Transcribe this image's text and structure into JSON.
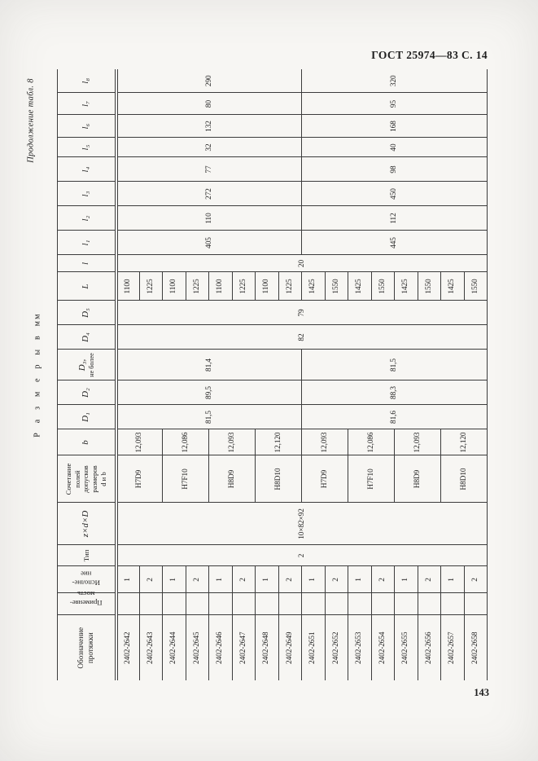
{
  "page": {
    "header": "ГОСТ 25974—83 С. 14",
    "continuation_note": "Продолжение табл. 8",
    "size_note": "Р а з м е р ы   в   мм",
    "page_number": "143"
  },
  "table": {
    "columns": [
      {
        "key": "designation",
        "label_lines": [
          "Обозначение",
          "протяжки"
        ],
        "cells": [
          {
            "v": "2402-2642",
            "s": 1
          },
          {
            "v": "2402-2643",
            "s": 1
          },
          {
            "v": "2402-2644",
            "s": 1
          },
          {
            "v": "2402-2645",
            "s": 1
          },
          {
            "v": "2402-2646",
            "s": 1
          },
          {
            "v": "2402-2647",
            "s": 1
          },
          {
            "v": "2402-2648",
            "s": 1
          },
          {
            "v": "2402-2649",
            "s": 1
          },
          {
            "v": "2402-2651",
            "s": 1
          },
          {
            "v": "2402-2652",
            "s": 1
          },
          {
            "v": "2402-2653",
            "s": 1
          },
          {
            "v": "2402-2654",
            "s": 1
          },
          {
            "v": "2402-2655",
            "s": 1
          },
          {
            "v": "2402-2656",
            "s": 1
          },
          {
            "v": "2402-2657",
            "s": 1
          },
          {
            "v": "2402-2658",
            "s": 1
          }
        ]
      },
      {
        "key": "applicability",
        "label_lines": [
          "Применяе-",
          "мость"
        ],
        "flip": true,
        "cells": [
          {
            "v": "",
            "s": 1
          },
          {
            "v": "",
            "s": 1
          },
          {
            "v": "",
            "s": 1
          },
          {
            "v": "",
            "s": 1
          },
          {
            "v": "",
            "s": 1
          },
          {
            "v": "",
            "s": 1
          },
          {
            "v": "",
            "s": 1
          },
          {
            "v": "",
            "s": 1
          },
          {
            "v": "",
            "s": 1
          },
          {
            "v": "",
            "s": 1
          },
          {
            "v": "",
            "s": 1
          },
          {
            "v": "",
            "s": 1
          },
          {
            "v": "",
            "s": 1
          },
          {
            "v": "",
            "s": 1
          },
          {
            "v": "",
            "s": 1
          },
          {
            "v": "",
            "s": 1
          }
        ]
      },
      {
        "key": "execution",
        "label_lines": [
          "Исполне-",
          "ние"
        ],
        "flip": true,
        "cells": [
          {
            "v": "1",
            "s": 1
          },
          {
            "v": "2",
            "s": 1
          },
          {
            "v": "1",
            "s": 1
          },
          {
            "v": "2",
            "s": 1
          },
          {
            "v": "1",
            "s": 1
          },
          {
            "v": "2",
            "s": 1
          },
          {
            "v": "1",
            "s": 1
          },
          {
            "v": "2",
            "s": 1
          },
          {
            "v": "1",
            "s": 1
          },
          {
            "v": "2",
            "s": 1
          },
          {
            "v": "1",
            "s": 1
          },
          {
            "v": "2",
            "s": 1
          },
          {
            "v": "1",
            "s": 1
          },
          {
            "v": "2",
            "s": 1
          },
          {
            "v": "1",
            "s": 1
          },
          {
            "v": "2",
            "s": 1
          }
        ]
      },
      {
        "key": "type",
        "label": "Тип",
        "cells": [
          {
            "v": "2",
            "s": 16
          }
        ]
      },
      {
        "key": "zdD",
        "label": "z×d×D",
        "italic": true,
        "cells": [
          {
            "v": "10×82×92",
            "s": 16
          }
        ]
      },
      {
        "key": "fit",
        "label_lines": [
          "Сочетание",
          "полей",
          "допусков",
          "размеров",
          "d и b"
        ],
        "cells": [
          {
            "v": "H7D9",
            "s": 2
          },
          {
            "v": "H7F10",
            "s": 2
          },
          {
            "v": "H8D9",
            "s": 2
          },
          {
            "v": "H8D10",
            "s": 2
          },
          {
            "v": "H7D9",
            "s": 2
          },
          {
            "v": "H7F10",
            "s": 2
          },
          {
            "v": "H8D9",
            "s": 2
          },
          {
            "v": "H8D10",
            "s": 2
          }
        ]
      },
      {
        "key": "b",
        "label": "b",
        "italic": true,
        "cells": [
          {
            "v": "12,093",
            "s": 2
          },
          {
            "v": "12,086",
            "s": 2
          },
          {
            "v": "12,093",
            "s": 2
          },
          {
            "v": "12,120",
            "s": 2
          },
          {
            "v": "12,093",
            "s": 2
          },
          {
            "v": "12,086",
            "s": 2
          },
          {
            "v": "12,093",
            "s": 2
          },
          {
            "v": "12,120",
            "s": 2
          }
        ]
      },
      {
        "key": "D1",
        "label": "D₁",
        "italic": true,
        "cells": [
          {
            "v": "81,5",
            "s": 8
          },
          {
            "v": "81,6",
            "s": 8
          }
        ]
      },
      {
        "key": "D2",
        "label": "D₂",
        "italic": true,
        "cells": [
          {
            "v": "89,5",
            "s": 8
          },
          {
            "v": "88,3",
            "s": 8
          }
        ]
      },
      {
        "key": "D3",
        "label": "D₃,",
        "italic": true,
        "note_lines": [
          "не",
          "более"
        ],
        "cells": [
          {
            "v": "81,4",
            "s": 8
          },
          {
            "v": "81,5",
            "s": 8
          }
        ]
      },
      {
        "key": "D4",
        "label": "D₄",
        "italic": true,
        "cells": [
          {
            "v": "82",
            "s": 16
          }
        ]
      },
      {
        "key": "D5",
        "label": "D₅",
        "italic": true,
        "cells": [
          {
            "v": "79",
            "s": 16
          }
        ]
      },
      {
        "key": "L",
        "label": "L",
        "italic": true,
        "cells": [
          {
            "v": "1100",
            "s": 1
          },
          {
            "v": "1225",
            "s": 1
          },
          {
            "v": "1100",
            "s": 1
          },
          {
            "v": "1225",
            "s": 1
          },
          {
            "v": "1100",
            "s": 1
          },
          {
            "v": "1225",
            "s": 1
          },
          {
            "v": "1100",
            "s": 1
          },
          {
            "v": "1225",
            "s": 1
          },
          {
            "v": "1425",
            "s": 1
          },
          {
            "v": "1550",
            "s": 1
          },
          {
            "v": "1425",
            "s": 1
          },
          {
            "v": "1550",
            "s": 1
          },
          {
            "v": "1425",
            "s": 1
          },
          {
            "v": "1550",
            "s": 1
          },
          {
            "v": "1425",
            "s": 1
          },
          {
            "v": "1550",
            "s": 1
          }
        ]
      },
      {
        "key": "l",
        "label": "l",
        "italic": true,
        "cells": [
          {
            "v": "20",
            "s": 16
          }
        ]
      },
      {
        "key": "l1",
        "label": "l₁",
        "italic": true,
        "cells": [
          {
            "v": "405",
            "s": 8
          },
          {
            "v": "445",
            "s": 8
          }
        ]
      },
      {
        "key": "l2",
        "label": "l₂",
        "italic": true,
        "cells": [
          {
            "v": "110",
            "s": 8
          },
          {
            "v": "112",
            "s": 8
          }
        ]
      },
      {
        "key": "l3",
        "label": "l₃",
        "italic": true,
        "cells": [
          {
            "v": "272",
            "s": 8
          },
          {
            "v": "450",
            "s": 8
          }
        ]
      },
      {
        "key": "l4",
        "label": "l₄",
        "italic": true,
        "cells": [
          {
            "v": "77",
            "s": 8
          },
          {
            "v": "98",
            "s": 8
          }
        ]
      },
      {
        "key": "l5",
        "label": "l₅",
        "italic": true,
        "cells": [
          {
            "v": "32",
            "s": 8
          },
          {
            "v": "40",
            "s": 8
          }
        ]
      },
      {
        "key": "l6",
        "label": "l₆",
        "italic": true,
        "cells": [
          {
            "v": "132",
            "s": 8
          },
          {
            "v": "168",
            "s": 8
          }
        ]
      },
      {
        "key": "l7",
        "label": "l₇",
        "italic": true,
        "cells": [
          {
            "v": "80",
            "s": 8
          },
          {
            "v": "95",
            "s": 8
          }
        ]
      },
      {
        "key": "l8",
        "label": "l₈",
        "italic": true,
        "cells": [
          {
            "v": "290",
            "s": 8
          },
          {
            "v": "320",
            "s": 8
          }
        ]
      }
    ]
  }
}
